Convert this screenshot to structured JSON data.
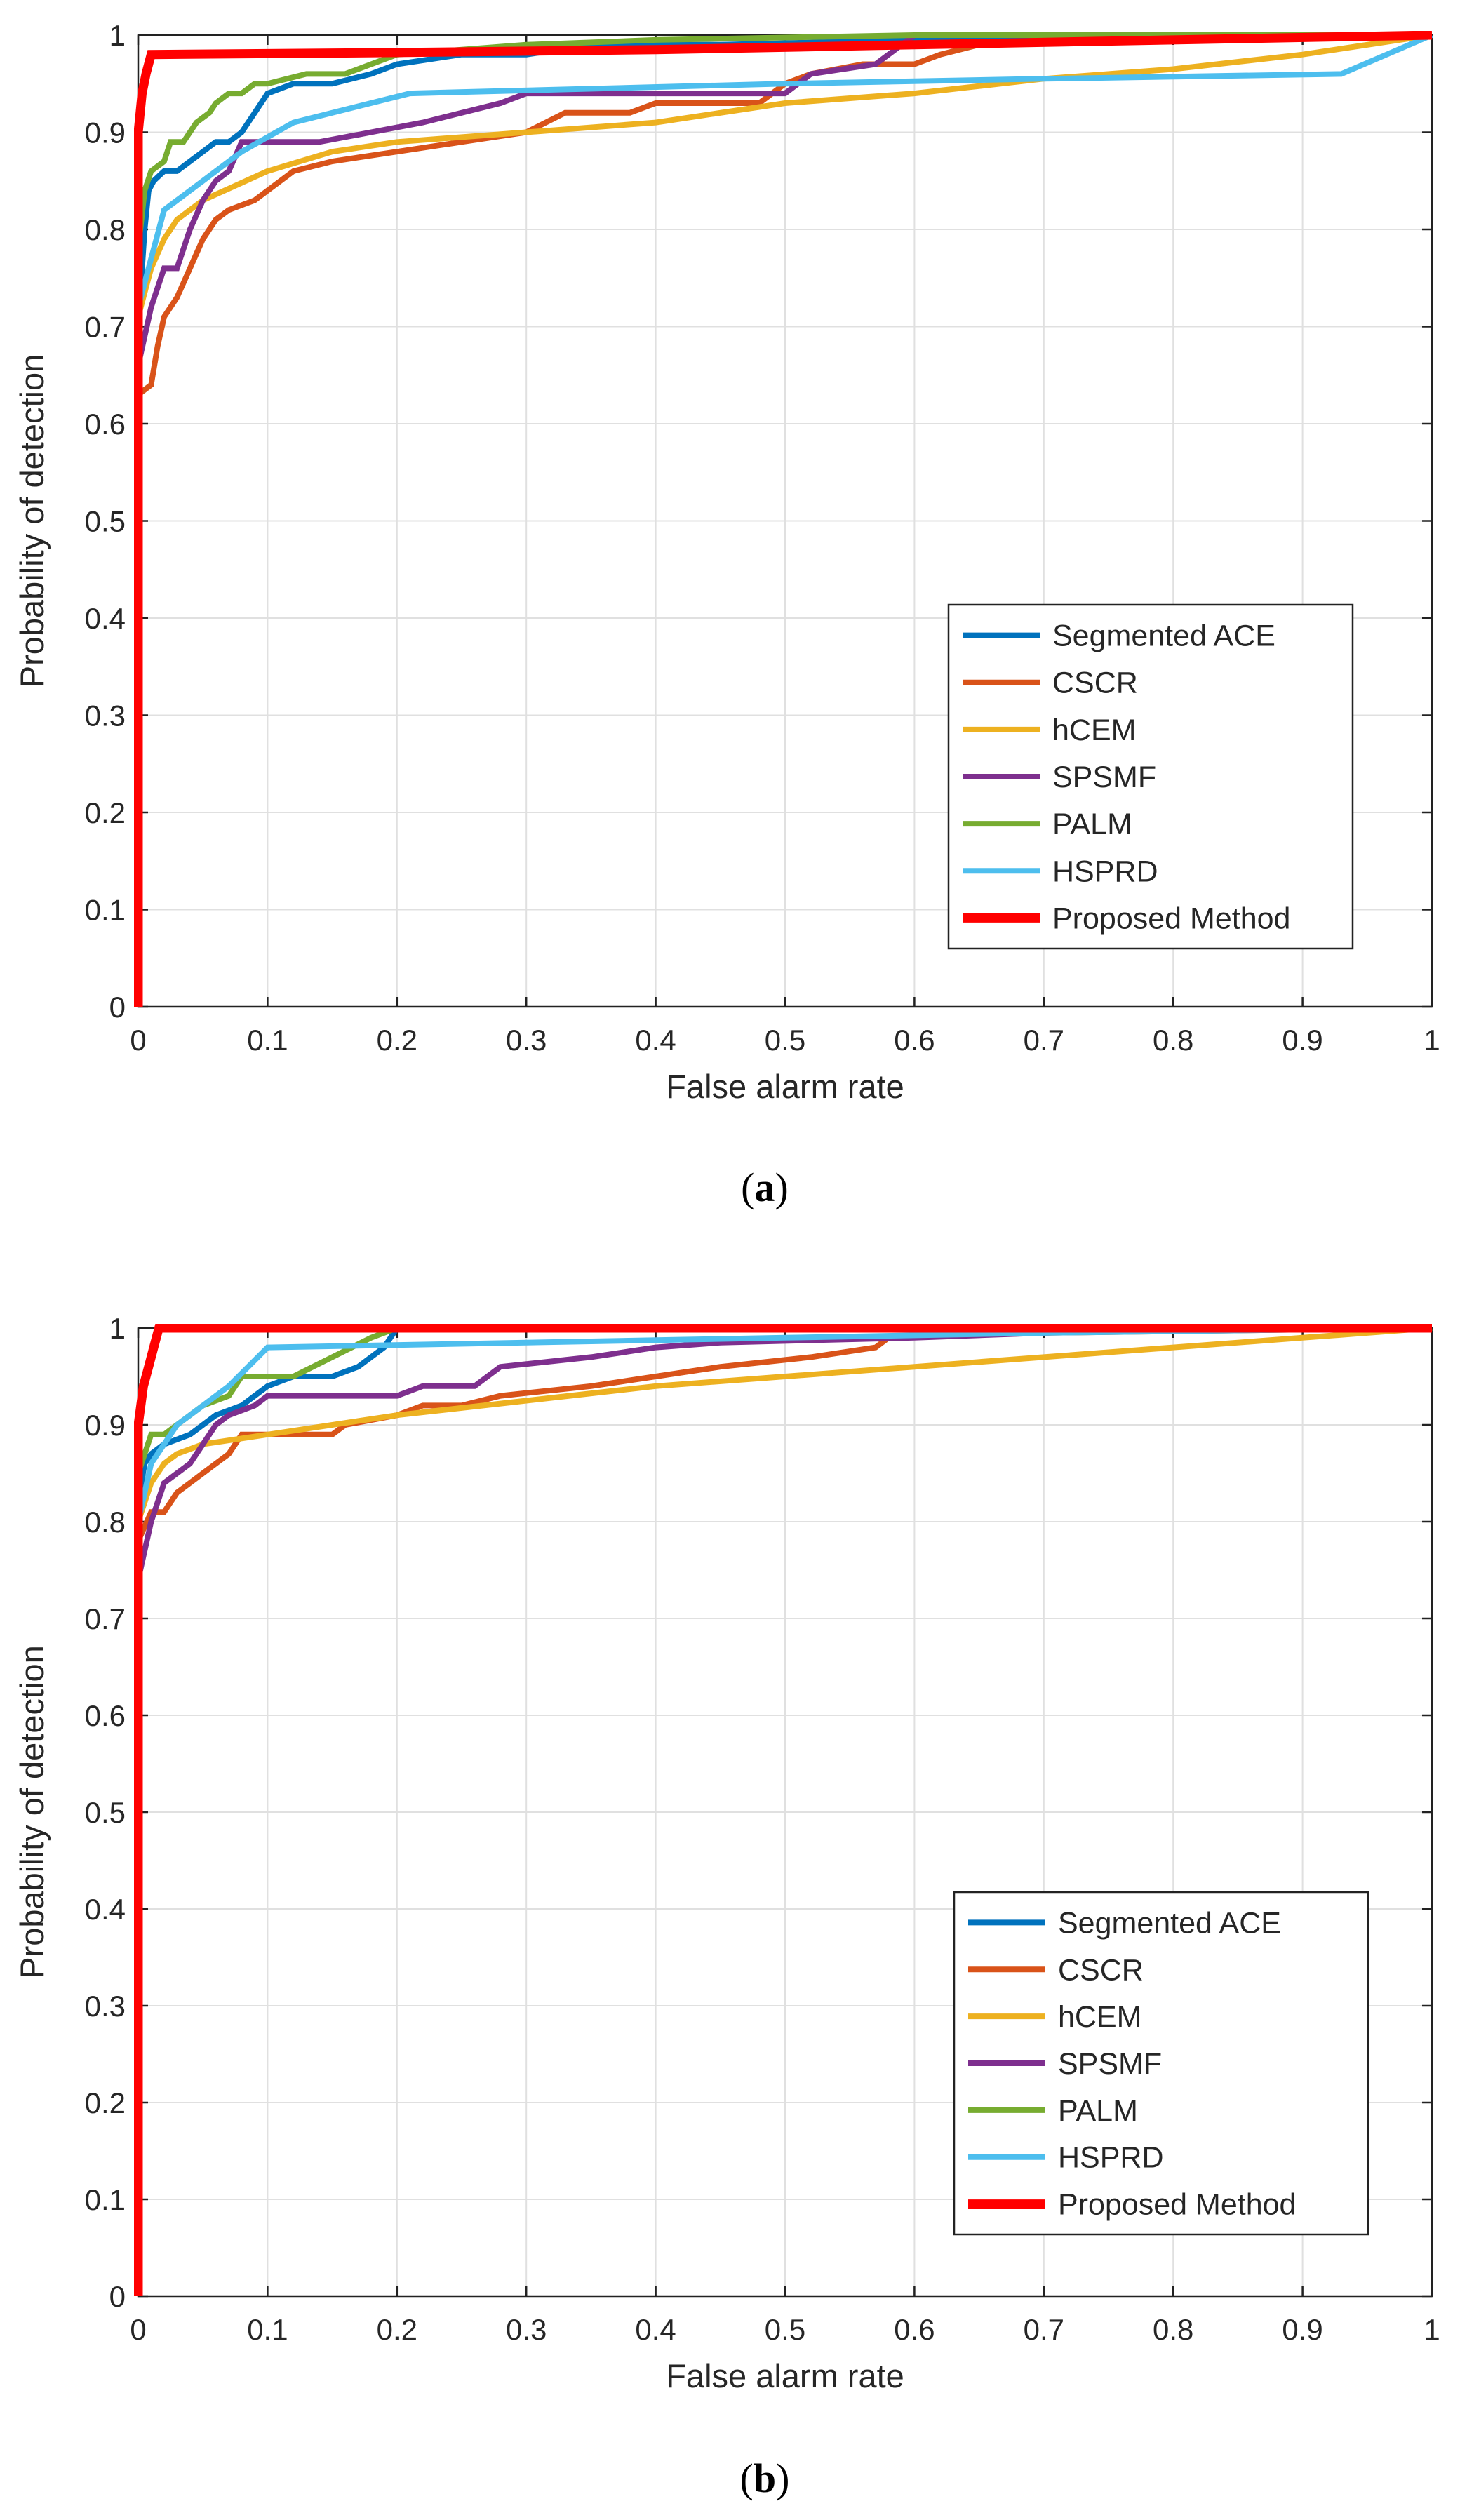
{
  "colors": {
    "segmented_ace": "#0072BD",
    "cscr": "#D95319",
    "hcem": "#EDB120",
    "spsmf": "#7E2F8E",
    "palm": "#77AC30",
    "hsprd": "#4DBEEE",
    "proposed": "#FF0000",
    "grid": "#E0E0E0",
    "axis": "#222222",
    "text": "#262626"
  },
  "chart_data": [
    {
      "id": "a",
      "type": "line",
      "caption": "a",
      "xlabel": "False alarm rate",
      "ylabel": "Probability of detection",
      "xlim": [
        0,
        1
      ],
      "ylim": [
        0,
        1
      ],
      "xticks": [
        "0",
        "0.1",
        "0.2",
        "0.3",
        "0.4",
        "0.5",
        "0.6",
        "0.7",
        "0.8",
        "0.9",
        "1"
      ],
      "yticks": [
        "0",
        "0.1",
        "0.2",
        "0.3",
        "0.4",
        "0.5",
        "0.6",
        "0.7",
        "0.8",
        "0.9",
        "1"
      ],
      "grid": true,
      "legend_location": "lower-right",
      "series": [
        {
          "name": "Segmented ACE",
          "color_key": "segmented_ace",
          "points": [
            [
              0,
              0
            ],
            [
              0,
              0.7
            ],
            [
              0.003,
              0.76
            ],
            [
              0.005,
              0.8
            ],
            [
              0.008,
              0.84
            ],
            [
              0.012,
              0.85
            ],
            [
              0.02,
              0.86
            ],
            [
              0.03,
              0.86
            ],
            [
              0.04,
              0.87
            ],
            [
              0.05,
              0.88
            ],
            [
              0.06,
              0.89
            ],
            [
              0.07,
              0.89
            ],
            [
              0.08,
              0.9
            ],
            [
              0.09,
              0.92
            ],
            [
              0.1,
              0.94
            ],
            [
              0.12,
              0.95
            ],
            [
              0.15,
              0.95
            ],
            [
              0.18,
              0.96
            ],
            [
              0.2,
              0.97
            ],
            [
              0.25,
              0.98
            ],
            [
              0.3,
              0.98
            ],
            [
              0.35,
              0.99
            ],
            [
              0.45,
              0.99
            ],
            [
              0.6,
              0.995
            ],
            [
              1,
              1
            ]
          ]
        },
        {
          "name": "CSCR",
          "color_key": "cscr",
          "points": [
            [
              0,
              0
            ],
            [
              0,
              0.63
            ],
            [
              0.01,
              0.64
            ],
            [
              0.015,
              0.68
            ],
            [
              0.02,
              0.71
            ],
            [
              0.03,
              0.73
            ],
            [
              0.04,
              0.76
            ],
            [
              0.05,
              0.79
            ],
            [
              0.06,
              0.81
            ],
            [
              0.07,
              0.82
            ],
            [
              0.09,
              0.83
            ],
            [
              0.1,
              0.84
            ],
            [
              0.12,
              0.86
            ],
            [
              0.15,
              0.87
            ],
            [
              0.2,
              0.88
            ],
            [
              0.25,
              0.89
            ],
            [
              0.3,
              0.9
            ],
            [
              0.33,
              0.92
            ],
            [
              0.38,
              0.92
            ],
            [
              0.4,
              0.93
            ],
            [
              0.48,
              0.93
            ],
            [
              0.5,
              0.95
            ],
            [
              0.52,
              0.96
            ],
            [
              0.56,
              0.97
            ],
            [
              0.6,
              0.97
            ],
            [
              0.62,
              0.98
            ],
            [
              0.65,
              0.99
            ],
            [
              0.7,
              0.995
            ],
            [
              1,
              1
            ]
          ]
        },
        {
          "name": "hCEM",
          "color_key": "hcem",
          "points": [
            [
              0,
              0
            ],
            [
              0,
              0.71
            ],
            [
              0.01,
              0.76
            ],
            [
              0.02,
              0.79
            ],
            [
              0.03,
              0.81
            ],
            [
              0.05,
              0.83
            ],
            [
              0.1,
              0.86
            ],
            [
              0.15,
              0.88
            ],
            [
              0.2,
              0.89
            ],
            [
              0.3,
              0.9
            ],
            [
              0.4,
              0.91
            ],
            [
              0.5,
              0.93
            ],
            [
              0.6,
              0.94
            ],
            [
              0.7,
              0.955
            ],
            [
              0.8,
              0.965
            ],
            [
              0.9,
              0.98
            ],
            [
              1,
              1
            ]
          ]
        },
        {
          "name": "SPSMF",
          "color_key": "spsmf",
          "points": [
            [
              0,
              0
            ],
            [
              0,
              0.66
            ],
            [
              0.01,
              0.72
            ],
            [
              0.02,
              0.76
            ],
            [
              0.03,
              0.76
            ],
            [
              0.04,
              0.8
            ],
            [
              0.05,
              0.83
            ],
            [
              0.06,
              0.85
            ],
            [
              0.07,
              0.86
            ],
            [
              0.08,
              0.89
            ],
            [
              0.14,
              0.89
            ],
            [
              0.18,
              0.9
            ],
            [
              0.22,
              0.91
            ],
            [
              0.28,
              0.93
            ],
            [
              0.3,
              0.94
            ],
            [
              0.5,
              0.94
            ],
            [
              0.52,
              0.96
            ],
            [
              0.57,
              0.97
            ],
            [
              0.6,
              1
            ],
            [
              1,
              1
            ]
          ]
        },
        {
          "name": "PALM",
          "color_key": "palm",
          "points": [
            [
              0,
              0
            ],
            [
              0,
              0.78
            ],
            [
              0.005,
              0.84
            ],
            [
              0.01,
              0.86
            ],
            [
              0.02,
              0.87
            ],
            [
              0.025,
              0.89
            ],
            [
              0.035,
              0.89
            ],
            [
              0.045,
              0.91
            ],
            [
              0.055,
              0.92
            ],
            [
              0.06,
              0.93
            ],
            [
              0.07,
              0.94
            ],
            [
              0.08,
              0.94
            ],
            [
              0.09,
              0.95
            ],
            [
              0.1,
              0.95
            ],
            [
              0.13,
              0.96
            ],
            [
              0.16,
              0.96
            ],
            [
              0.2,
              0.98
            ],
            [
              0.3,
              0.99
            ],
            [
              0.4,
              0.995
            ],
            [
              0.6,
              1
            ],
            [
              1,
              1
            ]
          ]
        },
        {
          "name": "HSPRD",
          "color_key": "hsprd",
          "points": [
            [
              0,
              0
            ],
            [
              0,
              0.72
            ],
            [
              0.01,
              0.77
            ],
            [
              0.02,
              0.82
            ],
            [
              0.03,
              0.83
            ],
            [
              0.05,
              0.85
            ],
            [
              0.08,
              0.88
            ],
            [
              0.12,
              0.91
            ],
            [
              0.21,
              0.94
            ],
            [
              0.5,
              0.95
            ],
            [
              0.7,
              0.955
            ],
            [
              0.93,
              0.96
            ],
            [
              1,
              1
            ]
          ]
        },
        {
          "name": "Proposed Method",
          "color_key": "proposed",
          "points": [
            [
              0,
              0
            ],
            [
              0,
              0.9
            ],
            [
              0.003,
              0.94
            ],
            [
              0.006,
              0.96
            ],
            [
              0.01,
              0.98
            ],
            [
              0.2,
              0.982
            ],
            [
              0.4,
              0.985
            ],
            [
              0.6,
              0.99
            ],
            [
              0.8,
              0.995
            ],
            [
              1,
              1
            ]
          ]
        }
      ]
    },
    {
      "id": "b",
      "type": "line",
      "caption": "b",
      "xlabel": "False alarm rate",
      "ylabel": "Probability of detection",
      "xlim": [
        0,
        1
      ],
      "ylim": [
        0,
        1
      ],
      "xticks": [
        "0",
        "0.1",
        "0.2",
        "0.3",
        "0.4",
        "0.5",
        "0.6",
        "0.7",
        "0.8",
        "0.9",
        "1"
      ],
      "yticks": [
        "0",
        "0.1",
        "0.2",
        "0.3",
        "0.4",
        "0.5",
        "0.6",
        "0.7",
        "0.8",
        "0.9",
        "1"
      ],
      "grid": true,
      "legend_location": "lower-right",
      "series": [
        {
          "name": "Segmented ACE",
          "color_key": "segmented_ace",
          "points": [
            [
              0,
              0
            ],
            [
              0,
              0.82
            ],
            [
              0.005,
              0.86
            ],
            [
              0.01,
              0.87
            ],
            [
              0.02,
              0.88
            ],
            [
              0.04,
              0.89
            ],
            [
              0.06,
              0.91
            ],
            [
              0.08,
              0.92
            ],
            [
              0.1,
              0.94
            ],
            [
              0.12,
              0.95
            ],
            [
              0.15,
              0.95
            ],
            [
              0.17,
              0.96
            ],
            [
              0.19,
              0.98
            ],
            [
              0.2,
              1
            ],
            [
              1,
              1
            ]
          ]
        },
        {
          "name": "CSCR",
          "color_key": "cscr",
          "points": [
            [
              0,
              0
            ],
            [
              0,
              0.78
            ],
            [
              0.01,
              0.81
            ],
            [
              0.02,
              0.81
            ],
            [
              0.03,
              0.83
            ],
            [
              0.04,
              0.84
            ],
            [
              0.05,
              0.85
            ],
            [
              0.06,
              0.86
            ],
            [
              0.07,
              0.87
            ],
            [
              0.08,
              0.89
            ],
            [
              0.15,
              0.89
            ],
            [
              0.16,
              0.9
            ],
            [
              0.2,
              0.91
            ],
            [
              0.22,
              0.92
            ],
            [
              0.25,
              0.92
            ],
            [
              0.28,
              0.93
            ],
            [
              0.35,
              0.94
            ],
            [
              0.4,
              0.95
            ],
            [
              0.45,
              0.96
            ],
            [
              0.52,
              0.97
            ],
            [
              0.57,
              0.98
            ],
            [
              0.58,
              0.99
            ],
            [
              0.7,
              0.995
            ],
            [
              1,
              1
            ]
          ]
        },
        {
          "name": "hCEM",
          "color_key": "hcem",
          "points": [
            [
              0,
              0
            ],
            [
              0,
              0.8
            ],
            [
              0.01,
              0.84
            ],
            [
              0.02,
              0.86
            ],
            [
              0.03,
              0.87
            ],
            [
              0.05,
              0.88
            ],
            [
              0.1,
              0.89
            ],
            [
              0.2,
              0.91
            ],
            [
              0.3,
              0.925
            ],
            [
              0.4,
              0.94
            ],
            [
              0.5,
              0.95
            ],
            [
              0.6,
              0.96
            ],
            [
              0.7,
              0.97
            ],
            [
              0.8,
              0.98
            ],
            [
              0.9,
              0.99
            ],
            [
              1,
              1
            ]
          ]
        },
        {
          "name": "SPSMF",
          "color_key": "spsmf",
          "points": [
            [
              0,
              0
            ],
            [
              0,
              0.74
            ],
            [
              0.01,
              0.8
            ],
            [
              0.02,
              0.84
            ],
            [
              0.03,
              0.85
            ],
            [
              0.04,
              0.86
            ],
            [
              0.05,
              0.88
            ],
            [
              0.06,
              0.9
            ],
            [
              0.07,
              0.91
            ],
            [
              0.09,
              0.92
            ],
            [
              0.1,
              0.93
            ],
            [
              0.2,
              0.93
            ],
            [
              0.22,
              0.94
            ],
            [
              0.26,
              0.94
            ],
            [
              0.28,
              0.96
            ],
            [
              0.35,
              0.97
            ],
            [
              0.4,
              0.98
            ],
            [
              0.45,
              0.985
            ],
            [
              0.6,
              0.99
            ],
            [
              0.8,
              1
            ],
            [
              1,
              1
            ]
          ]
        },
        {
          "name": "PALM",
          "color_key": "palm",
          "points": [
            [
              0,
              0
            ],
            [
              0,
              0.85
            ],
            [
              0.005,
              0.87
            ],
            [
              0.01,
              0.89
            ],
            [
              0.02,
              0.89
            ],
            [
              0.03,
              0.9
            ],
            [
              0.04,
              0.91
            ],
            [
              0.05,
              0.92
            ],
            [
              0.07,
              0.93
            ],
            [
              0.08,
              0.95
            ],
            [
              0.12,
              0.95
            ],
            [
              0.15,
              0.97
            ],
            [
              0.18,
              0.99
            ],
            [
              0.2,
              1
            ],
            [
              1,
              1
            ]
          ]
        },
        {
          "name": "HSPRD",
          "color_key": "hsprd",
          "points": [
            [
              0,
              0
            ],
            [
              0,
              0.8
            ],
            [
              0.01,
              0.86
            ],
            [
              0.02,
              0.88
            ],
            [
              0.03,
              0.9
            ],
            [
              0.05,
              0.92
            ],
            [
              0.07,
              0.94
            ],
            [
              0.1,
              0.98
            ],
            [
              0.3,
              0.985
            ],
            [
              0.5,
              0.99
            ],
            [
              0.7,
              0.995
            ],
            [
              1,
              1
            ]
          ]
        },
        {
          "name": "Proposed Method",
          "color_key": "proposed",
          "points": [
            [
              0,
              0
            ],
            [
              0,
              0.9
            ],
            [
              0.004,
              0.94
            ],
            [
              0.008,
              0.96
            ],
            [
              0.012,
              0.98
            ],
            [
              0.016,
              1
            ],
            [
              1,
              1
            ]
          ]
        }
      ]
    }
  ]
}
